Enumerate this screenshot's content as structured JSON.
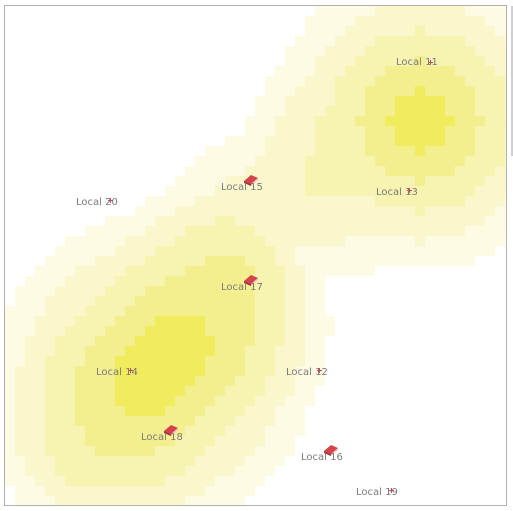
{
  "map": {
    "colors": {
      "background": "#ffffff",
      "heat_levels": [
        "#ffffff",
        "#fdfbe4",
        "#faf7cc",
        "#f7f3b0",
        "#f4ef8e",
        "#f0ec5e"
      ],
      "marker": "#d6424a",
      "label": "#7a7a7a"
    },
    "locations": [
      {
        "label": "Local 11",
        "icon": "crosshair-icon"
      },
      {
        "label": "Local 13",
        "icon": "crosshair-icon"
      },
      {
        "label": "Local 15",
        "icon": "book-icon"
      },
      {
        "label": "Local 20",
        "icon": "crosshair-icon"
      },
      {
        "label": "Local 17",
        "icon": "book-icon"
      },
      {
        "label": "Local 14",
        "icon": "crosshair-icon"
      },
      {
        "label": "Local 12",
        "icon": "crosshair-icon"
      },
      {
        "label": "Local 18",
        "icon": "book-icon"
      },
      {
        "label": "Local 16",
        "icon": "book-icon"
      },
      {
        "label": "Local 19",
        "icon": "crosshair-icon"
      }
    ]
  }
}
